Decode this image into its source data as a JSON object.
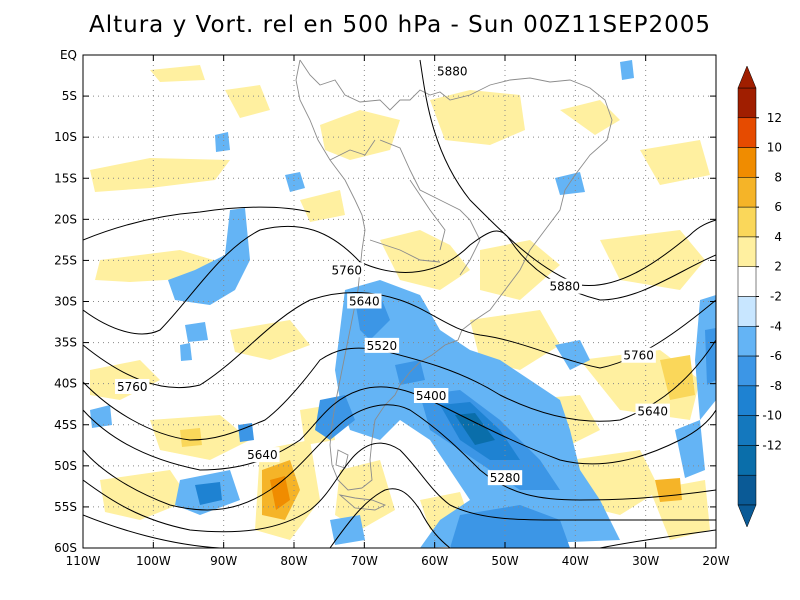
{
  "title": "Altura y Vort. rel en 500 hPa - Sun 00Z11SEP2005",
  "map": {
    "lon_range": [
      -110,
      -20
    ],
    "lat_range": [
      -60,
      0
    ],
    "lat_ticks": [
      "EQ",
      "5S",
      "10S",
      "15S",
      "20S",
      "25S",
      "30S",
      "35S",
      "40S",
      "45S",
      "50S",
      "55S",
      "60S"
    ],
    "lon_ticks": [
      "110W",
      "100W",
      "90W",
      "80W",
      "70W",
      "60W",
      "50W",
      "40W",
      "30W",
      "20W"
    ],
    "gridlines": true
  },
  "height_contours": {
    "levels": [
      "5880",
      "5760",
      "5640",
      "5520",
      "5400",
      "5280"
    ],
    "labels": [
      {
        "text": "5880",
        "lon": -57.5,
        "lat": -2.0
      },
      {
        "text": "5880",
        "lon": -41.5,
        "lat": -28.2
      },
      {
        "text": "5760",
        "lon": -72.5,
        "lat": -26.2
      },
      {
        "text": "5760",
        "lon": -31.0,
        "lat": -36.6
      },
      {
        "text": "5760",
        "lon": -103.0,
        "lat": -40.4
      },
      {
        "text": "5640",
        "lon": -70.0,
        "lat": -30.0
      },
      {
        "text": "5640",
        "lon": -29.0,
        "lat": -43.4
      },
      {
        "text": "5640",
        "lon": -84.5,
        "lat": -48.7
      },
      {
        "text": "5520",
        "lon": -67.5,
        "lat": -35.4
      },
      {
        "text": "5400",
        "lon": -60.5,
        "lat": -41.5
      },
      {
        "text": "5280",
        "lon": -50.0,
        "lat": -51.5
      }
    ]
  },
  "colorbar": {
    "labels": [
      "12",
      "10",
      "8",
      "6",
      "4",
      "2",
      "-2",
      "-4",
      "-6",
      "-8",
      "-10",
      "-12"
    ],
    "colors": [
      "#a01e00",
      "#e64b00",
      "#f08c00",
      "#f5b428",
      "#fad75a",
      "#fff0a0",
      "#ffffff",
      "#c8e6ff",
      "#64b4f5",
      "#3c96e6",
      "#1e82d2",
      "#1478be",
      "#0a6eaa",
      "#0a5a96"
    ]
  }
}
